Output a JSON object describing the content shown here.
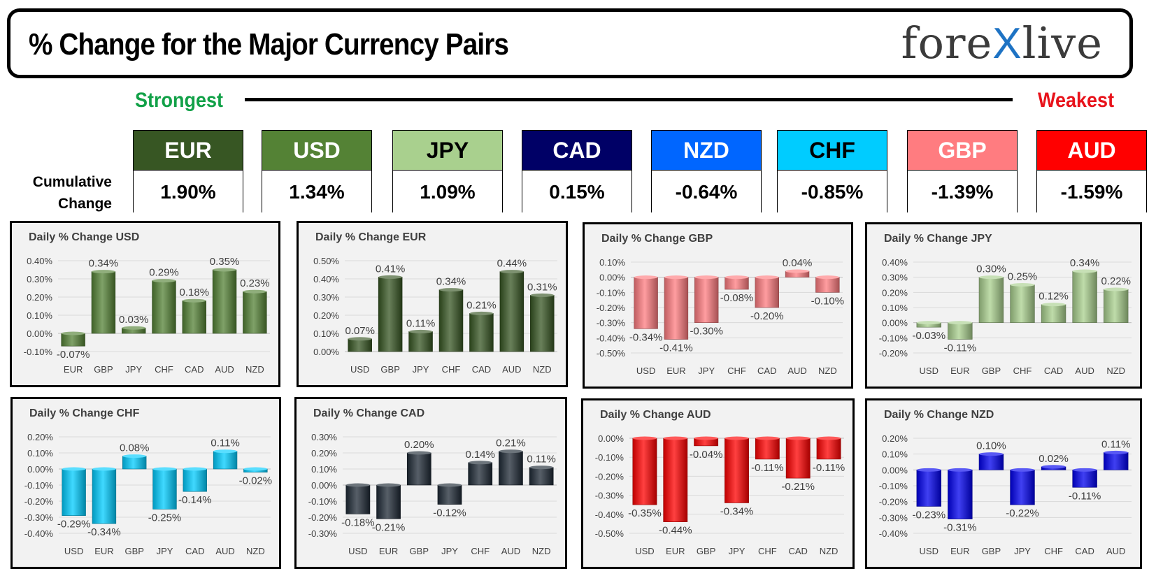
{
  "header": {
    "title": "% Change for the Major Currency Pairs",
    "logo_left": "fore",
    "logo_x": "X",
    "logo_right": "live"
  },
  "ranking": {
    "strongest_label": "Strongest",
    "weakest_label": "Weakest",
    "cumulative_label_1": "Cumulative",
    "cumulative_label_2": "Change",
    "currencies": [
      {
        "name": "EUR",
        "value": "1.90%",
        "bg": "#375623",
        "fg": "#ffffff"
      },
      {
        "name": "USD",
        "value": "1.34%",
        "bg": "#548235",
        "fg": "#ffffff"
      },
      {
        "name": "JPY",
        "value": "1.09%",
        "bg": "#a9d08e",
        "fg": "#000000"
      },
      {
        "name": "CAD",
        "value": "0.15%",
        "bg": "#000066",
        "fg": "#ffffff"
      },
      {
        "name": "NZD",
        "value": "-0.64%",
        "bg": "#0066ff",
        "fg": "#ffffff"
      },
      {
        "name": "CHF",
        "value": "-0.85%",
        "bg": "#00ccff",
        "fg": "#000000"
      },
      {
        "name": "GBP",
        "value": "-1.39%",
        "bg": "#ff7c80",
        "fg": "#ffffff"
      },
      {
        "name": "AUD",
        "value": "-1.59%",
        "bg": "#ff0000",
        "fg": "#ffffff"
      }
    ]
  },
  "chart_data": [
    {
      "type": "bar",
      "title": "Daily % Change USD",
      "color": "#548235",
      "categories": [
        "EUR",
        "GBP",
        "JPY",
        "CHF",
        "CAD",
        "AUD",
        "NZD"
      ],
      "values": [
        -0.07,
        0.34,
        0.03,
        0.29,
        0.18,
        0.35,
        0.23
      ],
      "labels": [
        "-0.07%",
        "0.34%",
        "0.03%",
        "0.29%",
        "0.18%",
        "0.35%",
        "0.23%"
      ],
      "ylim": [
        -0.1,
        0.4
      ],
      "yticks": [
        "-0.10%",
        "0.00%",
        "0.10%",
        "0.20%",
        "0.30%",
        "0.40%"
      ]
    },
    {
      "type": "bar",
      "title": "Daily % Change EUR",
      "color": "#375623",
      "categories": [
        "USD",
        "GBP",
        "JPY",
        "CHF",
        "CAD",
        "AUD",
        "NZD"
      ],
      "values": [
        0.07,
        0.41,
        0.11,
        0.34,
        0.21,
        0.44,
        0.31
      ],
      "labels": [
        "0.07%",
        "0.41%",
        "0.11%",
        "0.34%",
        "0.21%",
        "0.44%",
        "0.31%"
      ],
      "ylim": [
        0,
        0.5
      ],
      "yticks": [
        "0.00%",
        "0.10%",
        "0.20%",
        "0.30%",
        "0.40%",
        "0.50%"
      ]
    },
    {
      "type": "bar",
      "title": "Daily % Change GBP",
      "color": "#ff7c80",
      "categories": [
        "USD",
        "EUR",
        "JPY",
        "CHF",
        "CAD",
        "AUD",
        "NZD"
      ],
      "values": [
        -0.34,
        -0.41,
        -0.3,
        -0.08,
        -0.2,
        0.04,
        -0.1
      ],
      "labels": [
        "-0.34%",
        "-0.41%",
        "-0.30%",
        "-0.08%",
        "-0.20%",
        "0.04%",
        "-0.10%"
      ],
      "ylim": [
        -0.5,
        0.1
      ],
      "yticks": [
        "-0.50%",
        "-0.40%",
        "-0.30%",
        "-0.20%",
        "-0.10%",
        "0.00%",
        "0.10%"
      ]
    },
    {
      "type": "bar",
      "title": "Daily % Change JPY",
      "color": "#a9d08e",
      "categories": [
        "USD",
        "EUR",
        "GBP",
        "CHF",
        "CAD",
        "AUD",
        "NZD"
      ],
      "values": [
        -0.03,
        -0.11,
        0.3,
        0.25,
        0.12,
        0.34,
        0.22
      ],
      "labels": [
        "-0.03%",
        "-0.11%",
        "0.30%",
        "0.25%",
        "0.12%",
        "0.34%",
        "0.22%"
      ],
      "ylim": [
        -0.2,
        0.4
      ],
      "yticks": [
        "-0.20%",
        "-0.10%",
        "0.00%",
        "0.10%",
        "0.20%",
        "0.30%",
        "0.40%"
      ]
    },
    {
      "type": "bar",
      "title": "Daily % Change CHF",
      "color": "#00ccff",
      "categories": [
        "USD",
        "EUR",
        "GBP",
        "JPY",
        "CAD",
        "AUD",
        "NZD"
      ],
      "values": [
        -0.29,
        -0.34,
        0.08,
        -0.25,
        -0.14,
        0.11,
        -0.02
      ],
      "labels": [
        "-0.29%",
        "-0.34%",
        "0.08%",
        "-0.25%",
        "-0.14%",
        "0.11%",
        "-0.02%"
      ],
      "ylim": [
        -0.4,
        0.2
      ],
      "yticks": [
        "-0.40%",
        "-0.30%",
        "-0.20%",
        "-0.10%",
        "0.00%",
        "0.10%",
        "0.20%"
      ]
    },
    {
      "type": "bar",
      "title": "Daily % Change CAD",
      "color": "#1f2a36",
      "categories": [
        "USD",
        "EUR",
        "GBP",
        "JPY",
        "CHF",
        "AUD",
        "NZD"
      ],
      "values": [
        -0.18,
        -0.21,
        0.2,
        -0.12,
        0.14,
        0.21,
        0.11
      ],
      "labels": [
        "-0.18%",
        "-0.21%",
        "0.20%",
        "-0.12%",
        "0.14%",
        "0.21%",
        "0.11%"
      ],
      "ylim": [
        -0.3,
        0.3
      ],
      "yticks": [
        "-0.30%",
        "-0.20%",
        "-0.10%",
        "0.00%",
        "0.10%",
        "0.20%",
        "0.30%"
      ]
    },
    {
      "type": "bar",
      "title": "Daily % Change AUD",
      "color": "#ff0000",
      "categories": [
        "USD",
        "EUR",
        "GBP",
        "JPY",
        "CHF",
        "CAD",
        "NZD"
      ],
      "values": [
        -0.35,
        -0.44,
        -0.04,
        -0.34,
        -0.11,
        -0.21,
        -0.11
      ],
      "labels": [
        "-0.35%",
        "-0.44%",
        "-0.04%",
        "-0.34%",
        "-0.11%",
        "-0.21%",
        "-0.11%"
      ],
      "ylim": [
        -0.5,
        0.0
      ],
      "yticks": [
        "-0.50%",
        "-0.40%",
        "-0.30%",
        "-0.20%",
        "-0.10%",
        "0.00%"
      ]
    },
    {
      "type": "bar",
      "title": "Daily % Change NZD",
      "color": "#0000ee",
      "categories": [
        "USD",
        "EUR",
        "GBP",
        "JPY",
        "CHF",
        "CAD",
        "AUD"
      ],
      "values": [
        -0.23,
        -0.31,
        0.1,
        -0.22,
        0.02,
        -0.11,
        0.11
      ],
      "labels": [
        "-0.23%",
        "-0.31%",
        "0.10%",
        "-0.22%",
        "0.02%",
        "-0.11%",
        "0.11%"
      ],
      "ylim": [
        -0.4,
        0.2
      ],
      "yticks": [
        "-0.40%",
        "-0.30%",
        "-0.20%",
        "-0.10%",
        "0.00%",
        "0.10%",
        "0.20%"
      ]
    }
  ]
}
